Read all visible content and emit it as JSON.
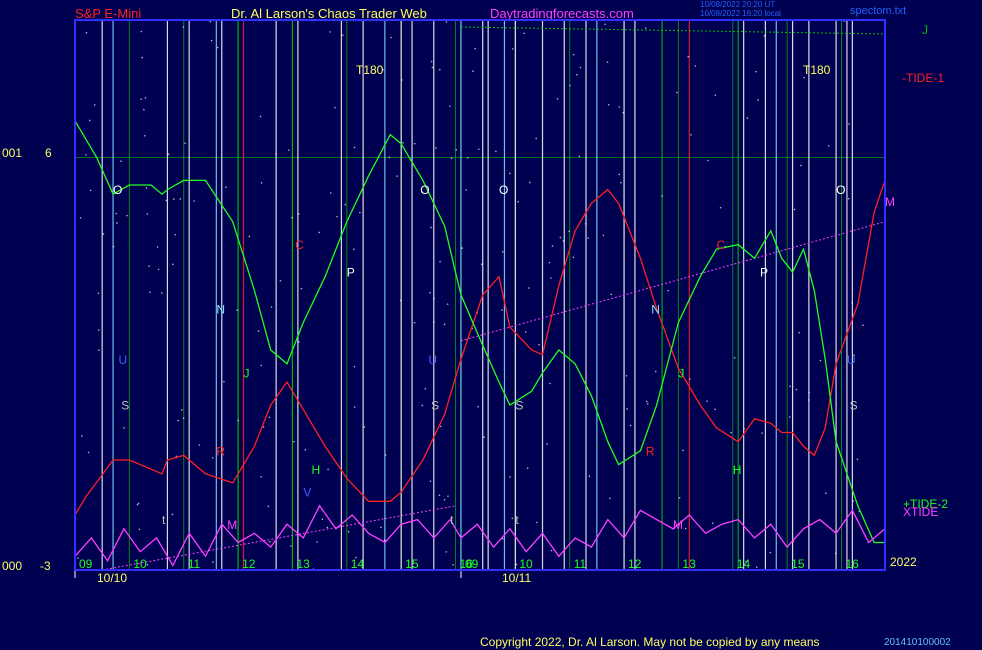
{
  "header": {
    "symbol": "S&P E-Mini",
    "title": "Dr. Al Larson's Chaos Trader Web",
    "site": "Daytradingforecasts.com",
    "stamp_line1": "10/08/2022 20:20 UT",
    "stamp_line2": "10/08/2022 16:20 local",
    "filename": "spectom.txt"
  },
  "footer": {
    "copyright": "Copyright 2022, Dr. Al Larson. May not be copied by any means",
    "code": "201410100002"
  },
  "colors": {
    "background": "#000050",
    "plot_border": "#3030ff",
    "tide1": "#ff2020",
    "tide2": "#20ff20",
    "xtide": "#ff40ff",
    "grid_green": "#00c000",
    "lines_white": "#ffffff",
    "lines_cyan": "#80e0ff",
    "lines_red": "#ff2020",
    "hour_labels": "#20ff20",
    "text_yellow": "#ffff60"
  },
  "chart_data": {
    "type": "line",
    "x_unit": "hour",
    "hours_day1": [
      "09",
      "10",
      "11",
      "12",
      "13",
      "14",
      "15",
      "16"
    ],
    "hours_day2": [
      "09",
      "10",
      "11",
      "12",
      "13",
      "14",
      "15",
      "16"
    ],
    "dates": [
      "10/10",
      "10/11"
    ],
    "year": "2022",
    "yaxis": {
      "top": "6",
      "bottom": "-3",
      "top_prefix": "001",
      "bottom_prefix": "000"
    },
    "series_labels": {
      "tide1": "-TIDE-1",
      "tide2": "+TIDE-2",
      "xtide": "XTIDE",
      "j_line": "J",
      "m_line": "M"
    },
    "t180_label": "T180",
    "planet_labels": [
      "O",
      "N",
      "U",
      "S",
      "C",
      "P",
      "R",
      "J",
      "H",
      "V",
      "M",
      "t"
    ],
    "series": [
      {
        "name": "-TIDE-1",
        "x": [
          9.0,
          9.2,
          9.7,
          10.0,
          10.4,
          10.6,
          10.7,
          11.0,
          11.4,
          11.9,
          12.3,
          12.6,
          12.9,
          13.2,
          13.6,
          14.0,
          14.4,
          14.8,
          15.0,
          15.4,
          15.8,
          16.0,
          16.1,
          16.5,
          16.8,
          17.0,
          17.4,
          17.6,
          17.9,
          18.2,
          18.5,
          18.8,
          19.0,
          19.4,
          19.7,
          20.1,
          20.5,
          20.8,
          21.2,
          21.5,
          21.8,
          22.0,
          22.2,
          22.4,
          22.6,
          22.8,
          23.0,
          23.4,
          23.7,
          23.9
        ],
        "y": [
          -1.8,
          -1.4,
          -0.6,
          -0.6,
          -0.8,
          -0.9,
          -0.6,
          -0.5,
          -0.9,
          -1.1,
          -0.3,
          0.6,
          1.1,
          0.5,
          -0.3,
          -1.0,
          -1.5,
          -1.5,
          -1.3,
          -0.6,
          0.4,
          1.2,
          1.6,
          3.0,
          3.4,
          2.3,
          1.8,
          1.7,
          3.2,
          4.4,
          5.0,
          5.3,
          5.0,
          3.8,
          2.7,
          1.4,
          0.6,
          0.1,
          -0.2,
          0.3,
          0.2,
          0.0,
          0.0,
          -0.3,
          -0.5,
          0.1,
          1.5,
          2.8,
          4.8,
          5.5
        ]
      },
      {
        "name": "+TIDE-2",
        "x": [
          9.0,
          9.4,
          9.7,
          10.0,
          10.4,
          10.6,
          10.7,
          11.0,
          11.4,
          11.9,
          12.3,
          12.6,
          12.9,
          13.2,
          13.6,
          14.0,
          14.4,
          14.8,
          15.0,
          15.4,
          15.8,
          16.0,
          16.1,
          16.5,
          16.8,
          17.0,
          17.4,
          17.6,
          17.9,
          18.2,
          18.5,
          18.8,
          19.0,
          19.4,
          19.7,
          20.1,
          20.5,
          20.8,
          21.2,
          21.5,
          21.8,
          22.0,
          22.2,
          22.4,
          22.6,
          22.8,
          23.0,
          23.4,
          23.7,
          23.9
        ],
        "y": [
          6.8,
          6.0,
          5.2,
          5.4,
          5.4,
          5.2,
          5.3,
          5.5,
          5.5,
          4.6,
          3.1,
          1.8,
          1.5,
          2.4,
          3.4,
          4.6,
          5.6,
          6.5,
          6.3,
          5.5,
          4.5,
          3.5,
          3.0,
          1.9,
          1.1,
          0.6,
          0.9,
          1.3,
          1.8,
          1.5,
          0.8,
          -0.2,
          -0.7,
          -0.4,
          0.6,
          2.4,
          3.4,
          4.0,
          4.1,
          3.8,
          4.4,
          3.8,
          3.5,
          4.0,
          3.1,
          1.6,
          -0.2,
          -1.6,
          -2.4,
          -2.4
        ]
      },
      {
        "name": "XTIDE",
        "x": [
          9.0,
          9.3,
          9.6,
          9.9,
          10.2,
          10.5,
          10.8,
          11.1,
          11.4,
          11.7,
          12.0,
          12.3,
          12.6,
          12.9,
          13.2,
          13.5,
          13.8,
          14.1,
          14.4,
          14.7,
          15.0,
          15.3,
          15.6,
          15.9,
          16.1,
          16.4,
          16.7,
          17.0,
          17.3,
          17.6,
          17.9,
          18.2,
          18.5,
          18.8,
          19.1,
          19.4,
          19.7,
          20.0,
          20.3,
          20.6,
          20.9,
          21.2,
          21.5,
          21.8,
          22.1,
          22.4,
          22.7,
          23.0,
          23.3,
          23.6,
          23.9
        ],
        "y": [
          -2.7,
          -2.3,
          -2.8,
          -2.1,
          -2.6,
          -2.3,
          -2.9,
          -2.2,
          -2.7,
          -2.0,
          -2.4,
          -2.2,
          -2.5,
          -2.0,
          -2.3,
          -1.6,
          -2.1,
          -1.8,
          -2.2,
          -2.4,
          -2.0,
          -1.9,
          -2.3,
          -1.9,
          -2.3,
          -2.0,
          -2.5,
          -2.1,
          -2.6,
          -2.2,
          -2.7,
          -2.3,
          -2.5,
          -1.9,
          -2.3,
          -1.7,
          -1.9,
          -2.1,
          -1.8,
          -2.2,
          -2.0,
          -1.9,
          -2.3,
          -2.0,
          -2.5,
          -2.1,
          -1.9,
          -2.2,
          -1.7,
          -2.4,
          -2.1
        ]
      }
    ]
  }
}
